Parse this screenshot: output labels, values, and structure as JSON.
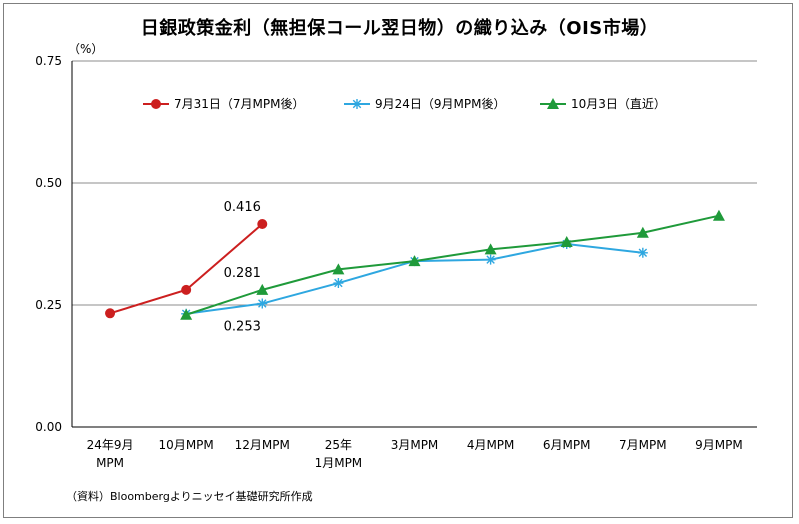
{
  "chart_data": {
    "type": "line",
    "title": "日銀政策金利（無担保コール翌日物）の織り込み（OIS市場）",
    "ylabel": "（%）",
    "ylim": [
      0,
      0.75
    ],
    "yticks": [
      "0.00",
      "0.25",
      "0.50",
      "0.75"
    ],
    "yticks_values": [
      0,
      0.25,
      0.5,
      0.75
    ],
    "grid": true,
    "legend_position": "top",
    "categories": [
      {
        "line1": "24年9月",
        "line2": "MPM"
      },
      {
        "line1": "10月MPM",
        "line2": ""
      },
      {
        "line1": "12月MPM",
        "line2": ""
      },
      {
        "line1": "25年",
        "line2": "1月MPM"
      },
      {
        "line1": "3月MPM",
        "line2": ""
      },
      {
        "line1": "4月MPM",
        "line2": ""
      },
      {
        "line1": "6月MPM",
        "line2": ""
      },
      {
        "line1": "7月MPM",
        "line2": ""
      },
      {
        "line1": "9月MPM",
        "line2": ""
      }
    ],
    "series": [
      {
        "name": "7月31日（7月MPM後）",
        "color": "#cc1f1f",
        "marker": "circle",
        "values": [
          0.233,
          0.281,
          0.416,
          null,
          null,
          null,
          null,
          null,
          null
        ]
      },
      {
        "name": "9月24日（9月MPM後）",
        "color": "#2ea7e0",
        "marker": "star",
        "values": [
          null,
          0.232,
          0.253,
          0.295,
          0.34,
          0.343,
          0.375,
          0.357,
          null
        ]
      },
      {
        "name": "10月3日（直近）",
        "color": "#1f9a3a",
        "marker": "triangle",
        "values": [
          null,
          0.23,
          0.281,
          0.323,
          0.34,
          0.364,
          0.379,
          0.398,
          0.433
        ]
      }
    ],
    "annotations": [
      {
        "text": "0.416",
        "series": 0,
        "index": 2,
        "pos": "above"
      },
      {
        "text": "0.281",
        "series": 2,
        "index": 2,
        "pos": "above"
      },
      {
        "text": "0.253",
        "series": 1,
        "index": 2,
        "pos": "below"
      }
    ]
  },
  "source_note": "（資料）Bloombergよりニッセイ基礎研究所作成"
}
